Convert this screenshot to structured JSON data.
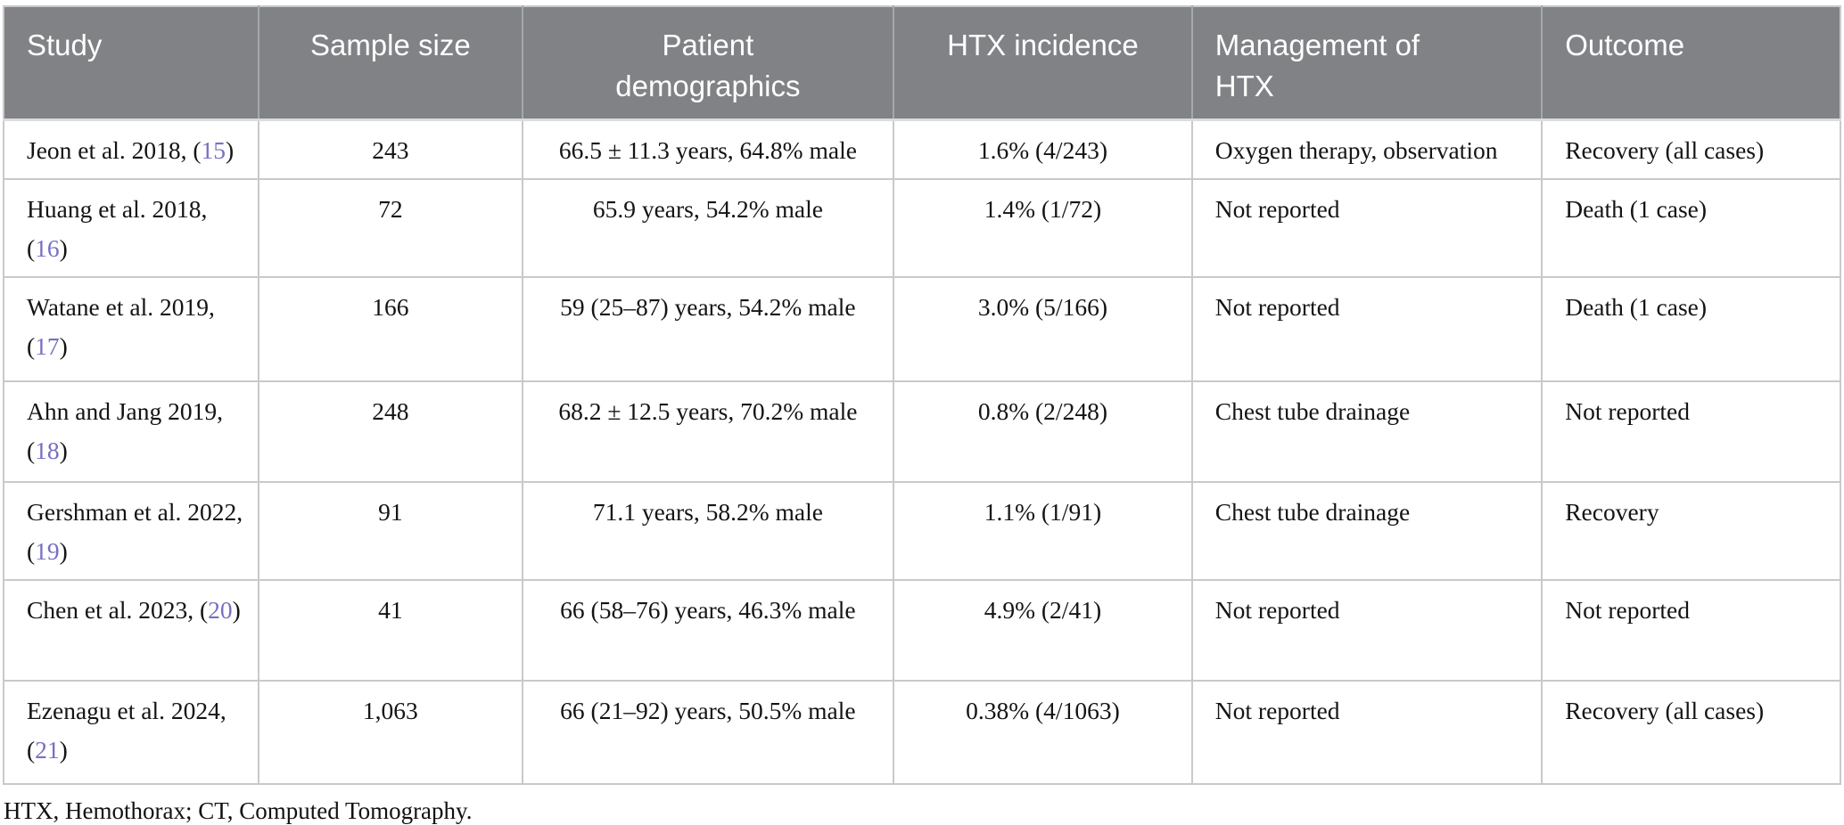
{
  "colors": {
    "header_bg": "#808285",
    "header_text": "#ffffff",
    "body_text": "#141414",
    "link": "#7670c3",
    "border": "#c9c9c9"
  },
  "table": {
    "columns": [
      {
        "label": "Study",
        "align": "left"
      },
      {
        "label": "Sample size",
        "align": "center"
      },
      {
        "label": "Patient demographics",
        "align": "center"
      },
      {
        "label": "HTX incidence",
        "align": "center"
      },
      {
        "label": "Management of HTX",
        "align": "left"
      },
      {
        "label": "Outcome",
        "align": "left"
      }
    ],
    "rows": [
      {
        "study_prefix": "Jeon et al. 2018, (",
        "citation": "15",
        "study_suffix": ")",
        "sample_size": "243",
        "demographics": "66.5 ± 11.3 years, 64.8% male",
        "incidence": "1.6% (4/243)",
        "management": "Oxygen therapy, observation",
        "outcome": "Recovery (all cases)"
      },
      {
        "study_prefix": "Huang et al. 2018, (",
        "citation": "16",
        "study_suffix": ")",
        "sample_size": "72",
        "demographics": "65.9 years, 54.2% male",
        "incidence": "1.4% (1/72)",
        "management": "Not reported",
        "outcome": "Death (1 case)"
      },
      {
        "study_prefix": "Watane et al. 2019, (",
        "citation": "17",
        "study_suffix": ")",
        "sample_size": "166",
        "demographics": "59 (25–87) years, 54.2% male",
        "incidence": "3.0% (5/166)",
        "management": "Not reported",
        "outcome": "Death (1 case)"
      },
      {
        "study_prefix": "Ahn and Jang 2019, (",
        "citation": "18",
        "study_suffix": ")",
        "sample_size": "248",
        "demographics": "68.2 ± 12.5 years, 70.2% male",
        "incidence": "0.8% (2/248)",
        "management": "Chest tube drainage",
        "outcome": "Not reported"
      },
      {
        "study_prefix": "Gershman et al. 2022, (",
        "citation": "19",
        "study_suffix": ")",
        "sample_size": "91",
        "demographics": "71.1 years, 58.2% male",
        "incidence": "1.1% (1/91)",
        "management": "Chest tube drainage",
        "outcome": "Recovery"
      },
      {
        "study_prefix": "Chen et al. 2023, (",
        "citation": "20",
        "study_suffix": ")",
        "sample_size": "41",
        "demographics": "66 (58–76) years, 46.3% male",
        "incidence": "4.9% (2/41)",
        "management": "Not reported",
        "outcome": "Not reported"
      },
      {
        "study_prefix": "Ezenagu et al. 2024, (",
        "citation": "21",
        "study_suffix": ")",
        "sample_size": "1,063",
        "demographics": "66 (21–92) years, 50.5% male",
        "incidence": "0.38% (4/1063)",
        "management": "Not reported",
        "outcome": "Recovery (all cases)"
      }
    ],
    "footnote": "HTX, Hemothorax; CT, Computed Tomography."
  }
}
